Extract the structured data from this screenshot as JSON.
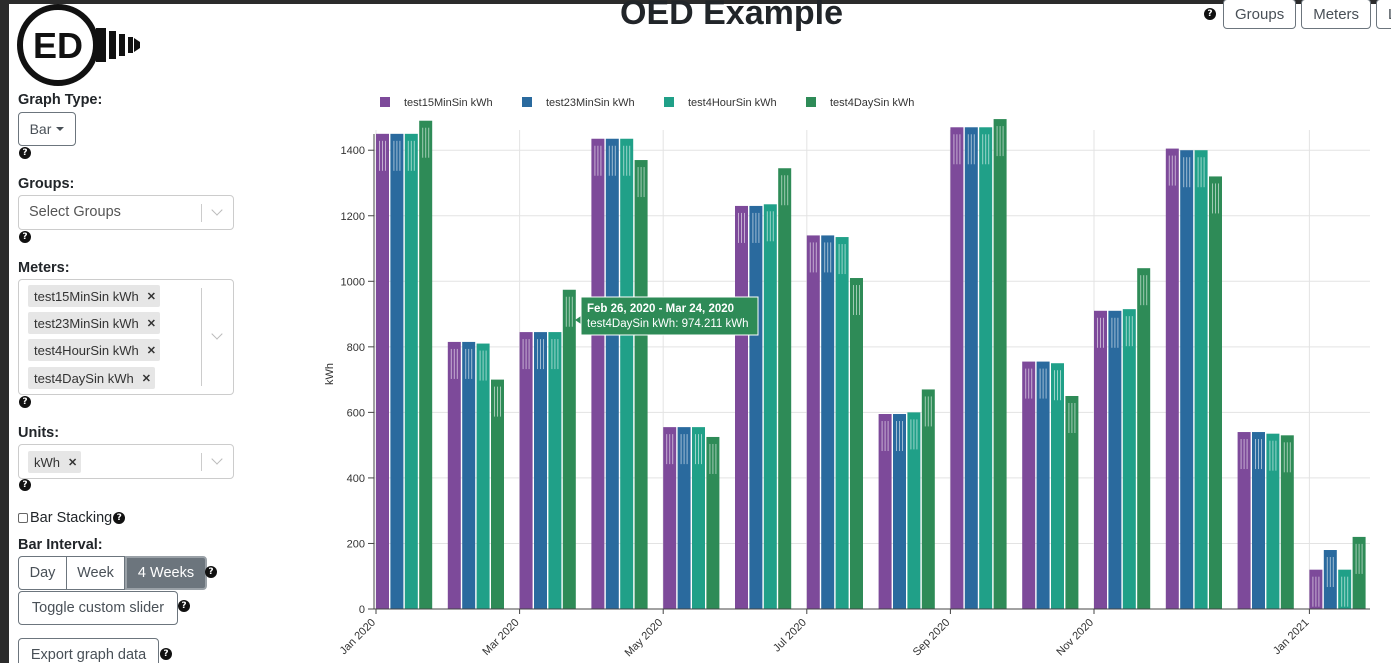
{
  "app": {
    "title": "OED Example",
    "logo_text": "ED"
  },
  "nav": {
    "buttons": [
      "Groups",
      "Meters",
      "L"
    ]
  },
  "sidebar": {
    "graph_type": {
      "label": "Graph Type:",
      "value": "Bar"
    },
    "groups": {
      "label": "Groups:",
      "placeholder": "Select Groups"
    },
    "meters": {
      "label": "Meters:",
      "selected": [
        "test15MinSin kWh",
        "test23MinSin kWh",
        "test4HourSin kWh",
        "test4DaySin kWh"
      ]
    },
    "units": {
      "label": "Units:",
      "selected": [
        "kWh"
      ]
    },
    "bar_stacking": {
      "label": "Bar Stacking",
      "checked": false
    },
    "bar_interval": {
      "label": "Bar Interval:",
      "options": [
        "Day",
        "Week",
        "4 Weeks"
      ],
      "active": "4 Weeks"
    },
    "toggle_slider_label": "Toggle custom slider",
    "export_label": "Export graph data"
  },
  "tooltip": {
    "title": "Feb 26, 2020 - Mar 24, 2020",
    "body": "test4DaySin kWh: 974.211 kWh"
  },
  "colors": {
    "series": [
      "#7d4a9a",
      "#2a6a9e",
      "#20a088",
      "#2e8b57"
    ],
    "tooltip": "#2e8b57"
  },
  "icons": {
    "help": "question-circle-icon",
    "caret": "caret-down-icon",
    "chevron": "chevron-down-icon",
    "remove": "x-icon"
  },
  "chart_data": {
    "type": "bar",
    "ylabel": "kWh",
    "ylim": [
      0,
      1480
    ],
    "yticks": [
      0,
      200,
      400,
      600,
      800,
      1000,
      1200,
      1400
    ],
    "x_ticks": [
      "Jan 2020",
      "Mar 2020",
      "May 2020",
      "Jul 2020",
      "Sep 2020",
      "Nov 2020",
      "Jan 2021"
    ],
    "legend_position": "top",
    "grid": true,
    "series": [
      {
        "name": "test15MinSin kWh",
        "values": [
          1450,
          815,
          845,
          1435,
          555,
          1230,
          1140,
          595,
          1470,
          755,
          910,
          1405,
          540,
          120
        ]
      },
      {
        "name": "test23MinSin kWh",
        "values": [
          1450,
          815,
          845,
          1435,
          555,
          1230,
          1140,
          595,
          1470,
          755,
          910,
          1400,
          540,
          180
        ]
      },
      {
        "name": "test4HourSin kWh",
        "values": [
          1450,
          810,
          845,
          1435,
          555,
          1235,
          1135,
          600,
          1470,
          750,
          915,
          1400,
          535,
          120
        ]
      },
      {
        "name": "test4DaySin kWh",
        "values": [
          1490,
          700,
          974.211,
          1370,
          525,
          1345,
          1010,
          670,
          1495,
          650,
          1040,
          1320,
          530,
          220
        ]
      }
    ]
  }
}
